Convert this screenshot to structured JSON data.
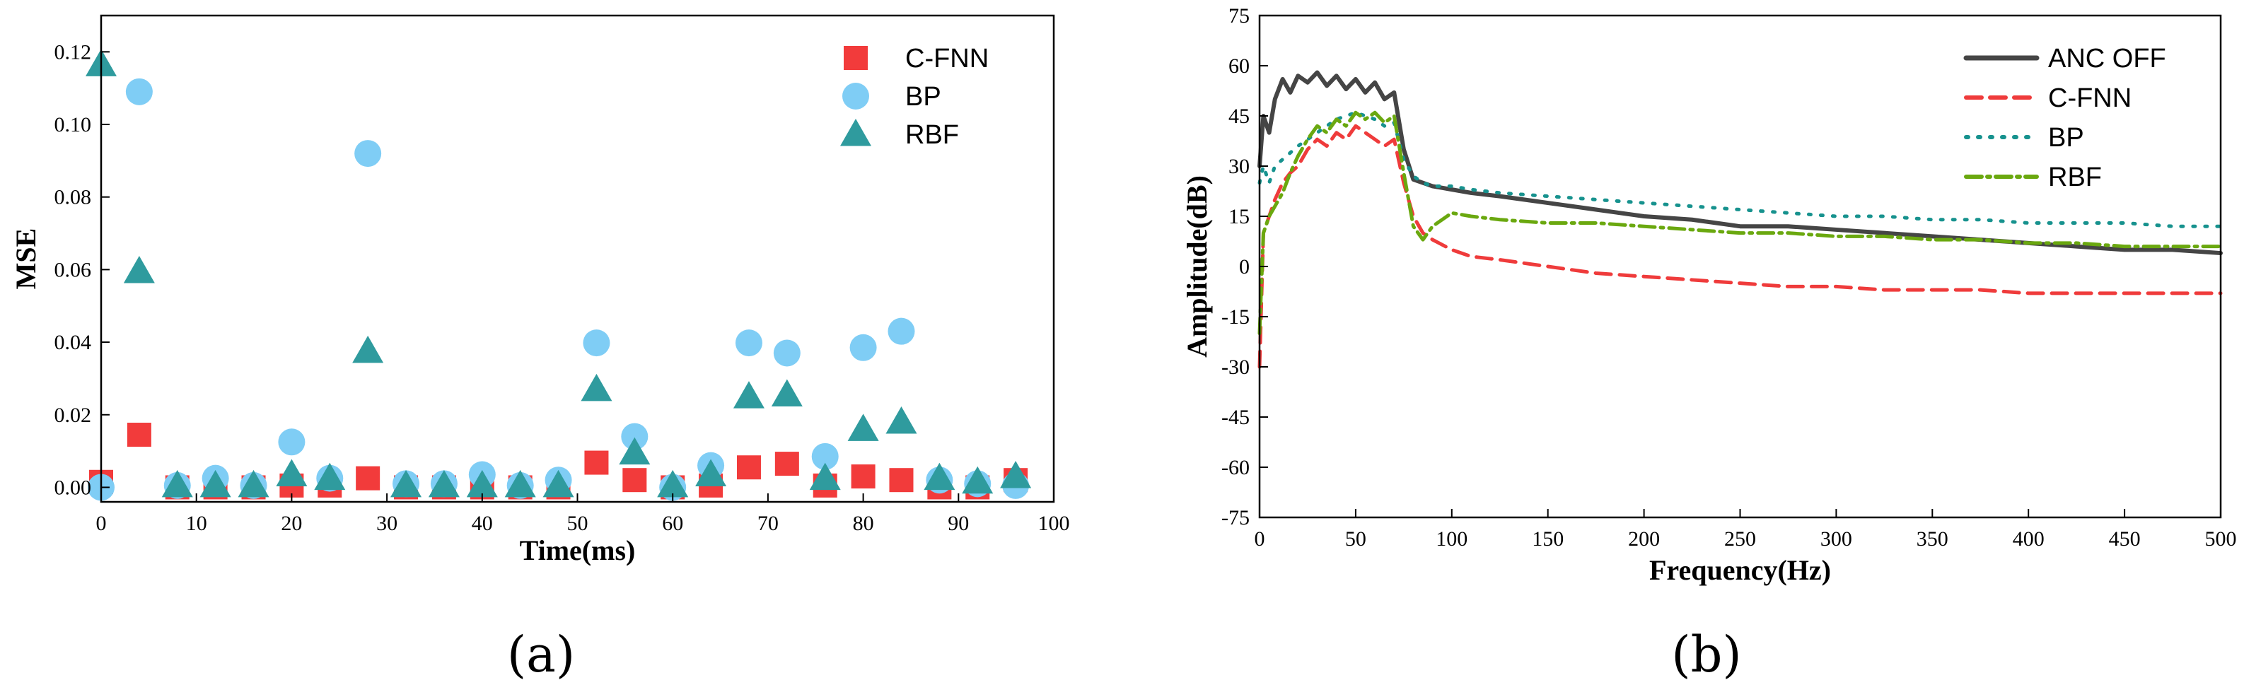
{
  "colors": {
    "cfnn": "#f23b3b",
    "bp": "#7fcdf5",
    "rbf": "#2f9b9e",
    "anc_off": "#454545",
    "cfnn_line": "#ef3b3b",
    "bp_line": "#17928e",
    "rbf_line": "#6aa80f"
  },
  "chart_data": [
    {
      "type": "scatter",
      "caption": "(a)",
      "xlabel": "Time(ms)",
      "ylabel": "MSE",
      "xlim": [
        0,
        100
      ],
      "ylim": [
        -0.004,
        0.13
      ],
      "xticks": [
        0,
        10,
        20,
        30,
        40,
        50,
        60,
        70,
        80,
        90,
        100
      ],
      "yticks": [
        0.0,
        0.02,
        0.04,
        0.06,
        0.08,
        0.1,
        0.12
      ],
      "ytick_labels": [
        "0.00",
        "0.02",
        "0.04",
        "0.06",
        "0.08",
        "0.10",
        "0.12"
      ],
      "legend_position": "top-right",
      "x": [
        0,
        4,
        8,
        12,
        16,
        20,
        24,
        28,
        32,
        36,
        40,
        44,
        48,
        52,
        56,
        60,
        64,
        68,
        72,
        76,
        80,
        84,
        88,
        92,
        96
      ],
      "series": [
        {
          "name": "C-FNN",
          "marker": "square",
          "values": [
            0.0015,
            0.0145,
            0.0,
            0.0,
            0.0,
            0.0005,
            0.0005,
            0.0025,
            0.0,
            0.0,
            0.0,
            0.0,
            0.0,
            0.0068,
            0.002,
            0.0,
            0.0005,
            0.0055,
            0.0065,
            0.0005,
            0.003,
            0.002,
            0.0,
            0.0,
            0.002
          ]
        },
        {
          "name": "BP",
          "marker": "circle",
          "values": [
            0.0,
            0.109,
            0.0005,
            0.0025,
            0.0005,
            0.0125,
            0.0025,
            0.092,
            0.001,
            0.001,
            0.0035,
            0.0005,
            0.002,
            0.0398,
            0.014,
            0.0,
            0.006,
            0.0398,
            0.037,
            0.0085,
            0.0385,
            0.043,
            0.002,
            0.001,
            0.0005
          ]
        },
        {
          "name": "RBF",
          "marker": "triangle",
          "values": [
            0.1165,
            0.0595,
            0.0005,
            0.0005,
            0.0005,
            0.0035,
            0.0025,
            0.0375,
            0.0005,
            0.0005,
            0.0005,
            0.0005,
            0.0005,
            0.027,
            0.0095,
            0.0005,
            0.0035,
            0.025,
            0.0255,
            0.0025,
            0.016,
            0.018,
            0.0025,
            0.0015,
            0.003
          ]
        }
      ]
    },
    {
      "type": "line",
      "caption": "(b)",
      "xlabel": "Frequency(Hz)",
      "ylabel": "Amplitude(dB)",
      "xlim": [
        0,
        500
      ],
      "ylim": [
        -75,
        75
      ],
      "xticks": [
        0,
        50,
        100,
        150,
        200,
        250,
        300,
        350,
        400,
        450,
        500
      ],
      "yticks": [
        -75,
        -60,
        -45,
        -30,
        -15,
        0,
        15,
        30,
        45,
        60,
        75
      ],
      "legend_position": "top-right",
      "x": [
        0,
        2,
        5,
        8,
        12,
        16,
        20,
        25,
        30,
        35,
        40,
        45,
        50,
        55,
        60,
        65,
        70,
        75,
        80,
        85,
        90,
        100,
        110,
        125,
        150,
        175,
        200,
        225,
        250,
        275,
        300,
        325,
        350,
        375,
        400,
        425,
        450,
        475,
        500
      ],
      "series": [
        {
          "name": "ANC OFF",
          "style": "solid",
          "values": [
            30,
            45,
            40,
            50,
            56,
            52,
            57,
            55,
            58,
            54,
            57,
            53,
            56,
            52,
            55,
            50,
            52,
            35,
            26,
            25,
            24,
            23,
            22,
            21,
            19,
            17,
            15,
            14,
            12,
            12,
            11,
            10,
            9,
            8,
            7,
            6,
            5,
            5,
            4
          ]
        },
        {
          "name": "C-FNN",
          "style": "dashed",
          "values": [
            -30,
            10,
            15,
            20,
            25,
            28,
            30,
            35,
            38,
            36,
            40,
            38,
            42,
            40,
            38,
            36,
            38,
            25,
            15,
            10,
            8,
            5,
            3,
            2,
            0,
            -2,
            -3,
            -4,
            -5,
            -6,
            -6,
            -7,
            -7,
            -7,
            -8,
            -8,
            -8,
            -8,
            -8
          ]
        },
        {
          "name": "BP",
          "style": "dotted",
          "values": [
            25,
            30,
            25,
            30,
            32,
            34,
            36,
            38,
            40,
            42,
            44,
            45,
            46,
            45,
            44,
            42,
            43,
            32,
            27,
            25,
            24,
            24,
            23,
            22,
            21,
            20,
            19,
            18,
            17,
            16,
            15,
            15,
            14,
            14,
            13,
            13,
            13,
            12,
            12
          ]
        },
        {
          "name": "RBF",
          "style": "dashdot",
          "values": [
            -20,
            10,
            15,
            18,
            22,
            28,
            33,
            38,
            42,
            40,
            44,
            42,
            46,
            44,
            46,
            43,
            45,
            28,
            12,
            8,
            12,
            16,
            15,
            14,
            13,
            13,
            12,
            11,
            10,
            10,
            9,
            9,
            8,
            8,
            7,
            7,
            6,
            6,
            6
          ]
        }
      ]
    }
  ]
}
